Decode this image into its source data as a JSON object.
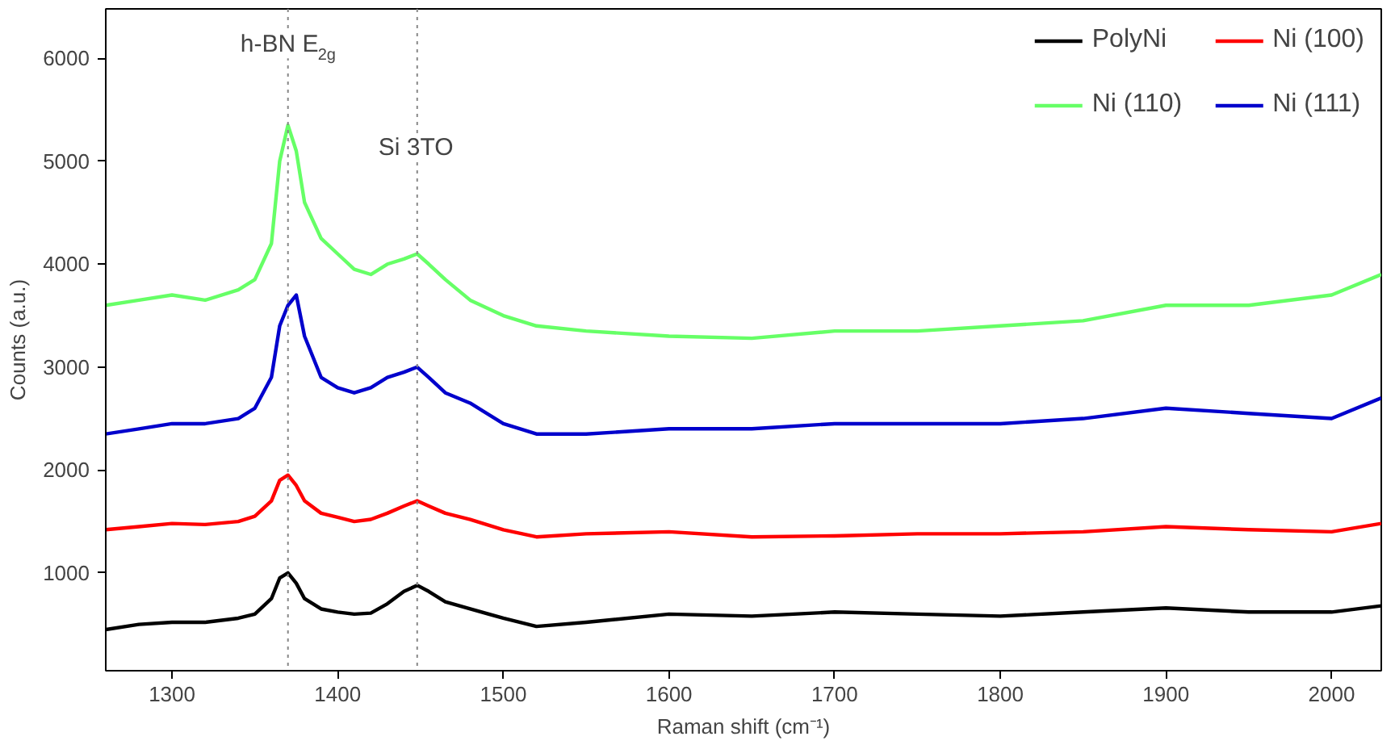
{
  "chart_data": {
    "type": "line",
    "xlabel": "Raman shift (cm⁻¹)",
    "ylabel": "Counts (a.u.)",
    "xlim": [
      1260,
      2030
    ],
    "xticks": [
      1300,
      1400,
      1500,
      1600,
      1700,
      1800,
      1900,
      2000
    ],
    "ylim": [
      50,
      6480
    ],
    "yticks": [
      1000,
      2000,
      3000,
      4000,
      5000,
      6000
    ],
    "x": [
      1260,
      1280,
      1300,
      1320,
      1340,
      1350,
      1360,
      1365,
      1370,
      1375,
      1380,
      1390,
      1400,
      1410,
      1420,
      1430,
      1440,
      1448,
      1455,
      1465,
      1480,
      1500,
      1520,
      1550,
      1600,
      1650,
      1700,
      1750,
      1800,
      1850,
      1900,
      1950,
      2000,
      2030
    ],
    "series": [
      {
        "name": "PolyNi",
        "color": "#000000",
        "values": [
          450,
          500,
          520,
          520,
          560,
          600,
          750,
          950,
          1000,
          900,
          750,
          650,
          620,
          600,
          610,
          700,
          820,
          880,
          820,
          720,
          650,
          560,
          480,
          520,
          600,
          580,
          620,
          600,
          580,
          620,
          660,
          620,
          620,
          680
        ]
      },
      {
        "name": "Ni (100)",
        "color": "#ff0000",
        "values": [
          1420,
          1450,
          1480,
          1470,
          1500,
          1550,
          1700,
          1900,
          1950,
          1850,
          1700,
          1580,
          1540,
          1500,
          1520,
          1580,
          1650,
          1700,
          1650,
          1580,
          1520,
          1420,
          1350,
          1380,
          1400,
          1350,
          1360,
          1380,
          1380,
          1400,
          1450,
          1420,
          1400,
          1480
        ]
      },
      {
        "name": "Ni (110)",
        "color": "#66ff66",
        "values": [
          3600,
          3650,
          3700,
          3650,
          3750,
          3850,
          4200,
          5000,
          5350,
          5100,
          4600,
          4250,
          4100,
          3950,
          3900,
          4000,
          4050,
          4100,
          4000,
          3850,
          3650,
          3500,
          3400,
          3350,
          3300,
          3280,
          3350,
          3350,
          3400,
          3450,
          3600,
          3600,
          3700,
          3900
        ]
      },
      {
        "name": "Ni (111)",
        "color": "#0000cc",
        "values": [
          2350,
          2400,
          2450,
          2450,
          2500,
          2600,
          2900,
          3400,
          3600,
          3700,
          3300,
          2900,
          2800,
          2750,
          2800,
          2900,
          2950,
          3000,
          2900,
          2750,
          2650,
          2450,
          2350,
          2350,
          2400,
          2400,
          2450,
          2450,
          2450,
          2500,
          2600,
          2550,
          2500,
          2700
        ]
      }
    ],
    "ref_lines": [
      {
        "axis": "x",
        "value": 1370,
        "color": "#888888",
        "line_style": "dotted"
      },
      {
        "axis": "x",
        "value": 1448,
        "color": "#888888",
        "line_style": "dotted"
      }
    ],
    "annotations": [
      {
        "text": "h-BN E$_{2g}$",
        "x": 1370,
        "y": 6000
      },
      {
        "text": "Si 3TO",
        "x": 1448,
        "y": 5000
      }
    ],
    "legend": "top right",
    "grid": false,
    "marker": "none",
    "line_style": "solid"
  }
}
